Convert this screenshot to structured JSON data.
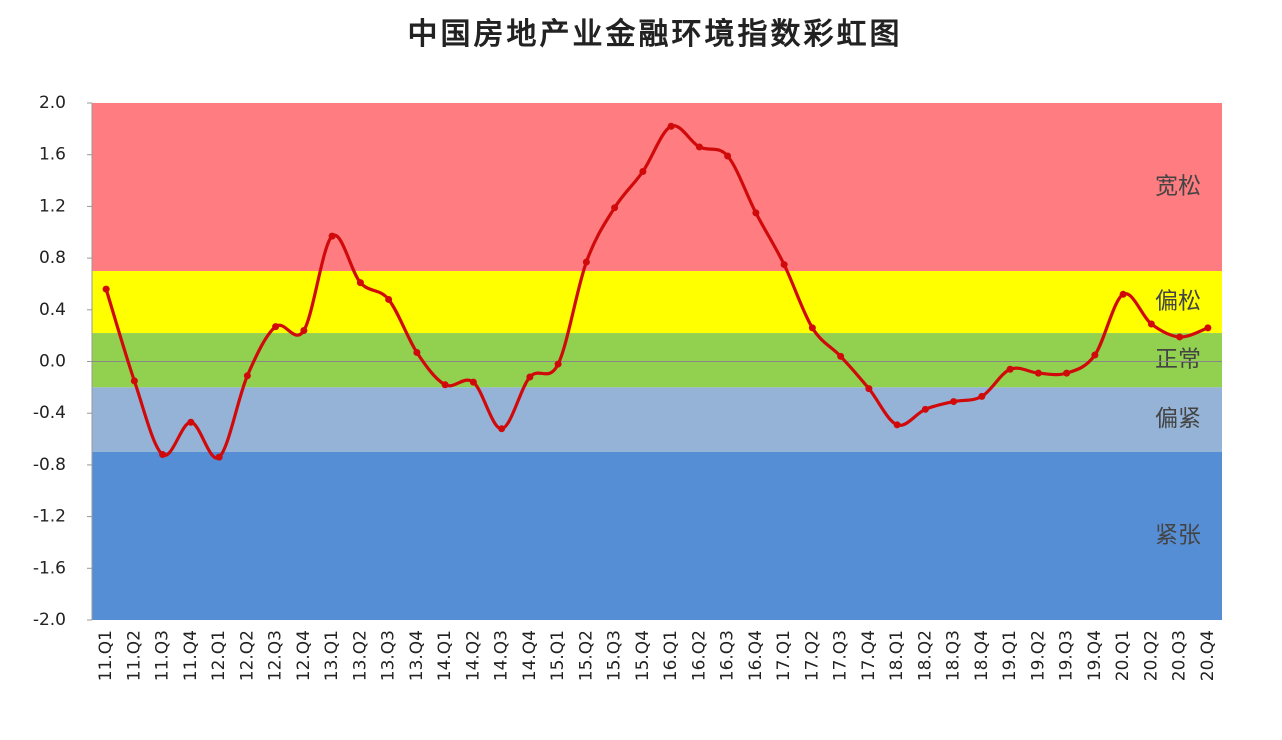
{
  "chart_data": {
    "type": "line",
    "title": "中国房地产业金融环境指数彩虹图",
    "categories": [
      "11.Q1",
      "11.Q2",
      "11.Q3",
      "11.Q4",
      "12.Q1",
      "12.Q2",
      "12.Q3",
      "12.Q4",
      "13.Q1",
      "13.Q2",
      "13.Q3",
      "13.Q4",
      "14.Q1",
      "14.Q2",
      "14.Q3",
      "14.Q4",
      "15.Q1",
      "15.Q2",
      "15.Q3",
      "15.Q4",
      "16.Q1",
      "16.Q2",
      "16.Q3",
      "16.Q4",
      "17.Q1",
      "17.Q2",
      "17.Q3",
      "17.Q4",
      "18.Q1",
      "18.Q2",
      "18.Q3",
      "18.Q4",
      "19.Q1",
      "19.Q2",
      "19.Q3",
      "19.Q4",
      "20.Q1",
      "20.Q2",
      "20.Q3",
      "20.Q4"
    ],
    "values": [
      0.56,
      -0.15,
      -0.72,
      -0.47,
      -0.74,
      -0.11,
      0.27,
      0.24,
      0.97,
      0.61,
      0.48,
      0.07,
      -0.18,
      -0.16,
      -0.52,
      -0.12,
      -0.02,
      0.77,
      1.19,
      1.47,
      1.82,
      1.66,
      1.59,
      1.15,
      0.75,
      0.26,
      0.04,
      -0.21,
      -0.49,
      -0.37,
      -0.31,
      -0.27,
      -0.06,
      -0.09,
      -0.09,
      0.05,
      0.52,
      0.29,
      0.19,
      0.26
    ],
    "color": "#d00a0a",
    "ylim": [
      -2,
      2
    ],
    "yticks": [
      {
        "value": 2,
        "label": "2.0"
      },
      {
        "value": 1.6,
        "label": "1.6"
      },
      {
        "value": 1.2,
        "label": "1.2"
      },
      {
        "value": 0.8,
        "label": "0.8"
      },
      {
        "value": 0.4,
        "label": "0.4"
      },
      {
        "value": 0,
        "label": "0.0"
      },
      {
        "value": -0.4,
        "label": "-0.4"
      },
      {
        "value": -0.8,
        "label": "-0.8"
      },
      {
        "value": -1.2,
        "label": "-1.2"
      },
      {
        "value": -1.6,
        "label": "-1.6"
      },
      {
        "value": -2,
        "label": "-2.0"
      }
    ],
    "bands": [
      {
        "label": "宽松",
        "from": 0.7,
        "to": 2,
        "color": "#ff7c80"
      },
      {
        "label": "偏松",
        "from": 0.22,
        "to": 0.7,
        "color": "#ffff00"
      },
      {
        "label": "正常",
        "from": -0.2,
        "to": 0.22,
        "color": "#92d050"
      },
      {
        "label": "偏紧",
        "from": -0.7,
        "to": -0.2,
        "color": "#95b3d7"
      },
      {
        "label": "紧张",
        "from": -2,
        "to": -0.7,
        "color": "#558ed5"
      }
    ]
  }
}
